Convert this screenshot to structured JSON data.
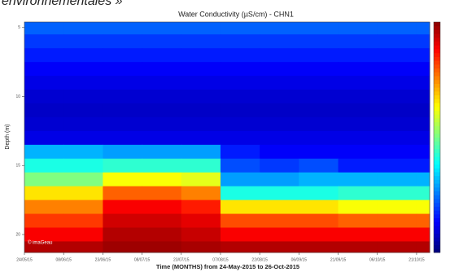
{
  "caption": "environnementales »",
  "chart_data": {
    "type": "heatmap",
    "title": "Water Conductivity (µS/cm) - CHN1",
    "xlabel": "Time (MONTHS) from 24-May-2015 to 26-Oct-2015",
    "ylabel": "Depth (m)",
    "watermark": "© imaGeau",
    "colormap": "jet",
    "xlim": [
      "2015-05-24",
      "2015-10-26"
    ],
    "xticks": [
      {
        "value": "2015-05-24",
        "label": "24/05/15"
      },
      {
        "value": "2015-06-08",
        "label": "08/06/15"
      },
      {
        "value": "2015-06-23",
        "label": "23/06/15"
      },
      {
        "value": "2015-07-08",
        "label": "08/07/15"
      },
      {
        "value": "2015-07-23",
        "label": "23/07/15"
      },
      {
        "value": "2015-08-07",
        "label": "07/08/15"
      },
      {
        "value": "2015-08-22",
        "label": "22/08/15"
      },
      {
        "value": "2015-09-06",
        "label": "06/09/15"
      },
      {
        "value": "2015-09-21",
        "label": "21/09/15"
      },
      {
        "value": "2015-10-06",
        "label": "06/10/15"
      },
      {
        "value": "2015-10-21",
        "label": "21/10/15"
      }
    ],
    "ylim": [
      4.6,
      21.3
    ],
    "yticks": [
      5,
      10,
      15,
      20
    ],
    "y_inverted": true,
    "zlim": [
      0,
      1
    ],
    "x": [
      "2015-05-24",
      "2015-06-08",
      "2015-06-23",
      "2015-07-08",
      "2015-07-23",
      "2015-08-07",
      "2015-08-22",
      "2015-09-06",
      "2015-09-21",
      "2015-10-06",
      "2015-10-21",
      "2015-10-26"
    ],
    "y": [
      4.6,
      5.5,
      6.5,
      7.5,
      8.5,
      9.5,
      10.5,
      11.5,
      12.5,
      13.5,
      14.5,
      15.5,
      16.5,
      17.5,
      18.5,
      19.5,
      20.5,
      21.3
    ],
    "z": [
      [
        0.22,
        0.22,
        0.22,
        0.22,
        0.22,
        0.22,
        0.22,
        0.22,
        0.22,
        0.22,
        0.22
      ],
      [
        0.18,
        0.18,
        0.18,
        0.18,
        0.18,
        0.18,
        0.18,
        0.18,
        0.18,
        0.18,
        0.18
      ],
      [
        0.15,
        0.15,
        0.15,
        0.15,
        0.15,
        0.15,
        0.15,
        0.15,
        0.15,
        0.15,
        0.15
      ],
      [
        0.12,
        0.12,
        0.12,
        0.12,
        0.12,
        0.12,
        0.12,
        0.12,
        0.12,
        0.12,
        0.12
      ],
      [
        0.1,
        0.1,
        0.1,
        0.1,
        0.1,
        0.1,
        0.1,
        0.1,
        0.1,
        0.1,
        0.1
      ],
      [
        0.08,
        0.08,
        0.08,
        0.08,
        0.08,
        0.08,
        0.08,
        0.08,
        0.08,
        0.08,
        0.08
      ],
      [
        0.07,
        0.07,
        0.07,
        0.07,
        0.07,
        0.07,
        0.07,
        0.07,
        0.07,
        0.07,
        0.07
      ],
      [
        0.08,
        0.08,
        0.08,
        0.08,
        0.08,
        0.08,
        0.08,
        0.08,
        0.08,
        0.08,
        0.08
      ],
      [
        0.1,
        0.1,
        0.1,
        0.1,
        0.1,
        0.1,
        0.1,
        0.1,
        0.1,
        0.1,
        0.1
      ],
      [
        0.3,
        0.3,
        0.28,
        0.28,
        0.28,
        0.15,
        0.12,
        0.12,
        0.12,
        0.12,
        0.12
      ],
      [
        0.4,
        0.4,
        0.42,
        0.42,
        0.42,
        0.2,
        0.18,
        0.2,
        0.15,
        0.15,
        0.15
      ],
      [
        0.5,
        0.5,
        0.62,
        0.62,
        0.6,
        0.28,
        0.28,
        0.3,
        0.3,
        0.3,
        0.3
      ],
      [
        0.65,
        0.65,
        0.78,
        0.78,
        0.75,
        0.4,
        0.4,
        0.4,
        0.42,
        0.42,
        0.42
      ],
      [
        0.75,
        0.75,
        0.88,
        0.88,
        0.85,
        0.65,
        0.65,
        0.65,
        0.62,
        0.62,
        0.62
      ],
      [
        0.82,
        0.82,
        0.92,
        0.92,
        0.9,
        0.8,
        0.8,
        0.8,
        0.78,
        0.78,
        0.78
      ],
      [
        0.88,
        0.88,
        0.95,
        0.95,
        0.93,
        0.88,
        0.88,
        0.88,
        0.88,
        0.88,
        0.88
      ],
      [
        0.95,
        0.95,
        0.97,
        0.97,
        0.96,
        0.95,
        0.95,
        0.95,
        0.95,
        0.95,
        0.95
      ]
    ]
  }
}
